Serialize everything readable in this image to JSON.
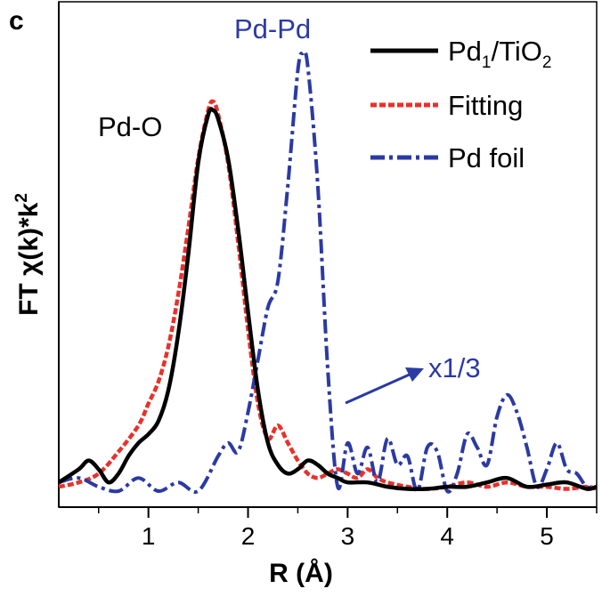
{
  "panel_label": "c",
  "chart_data": {
    "type": "line",
    "xlabel": "R (Å)",
    "ylabel": "FT χ(k)*k²",
    "ylabel_parts": {
      "prefix": "FT χ(k)*k",
      "sup": "2"
    },
    "xlim": [
      0.1,
      5.5
    ],
    "ylim": [
      0,
      1
    ],
    "y_ticks_labeled": false,
    "x_ticks": [
      1,
      2,
      3,
      4,
      5
    ],
    "x_tick_labels": [
      "1",
      "2",
      "3",
      "4",
      "5"
    ],
    "legend_position": "top-right",
    "series": [
      {
        "name": "Pd1/TiO2",
        "legend_parts": {
          "a": "Pd",
          "sub1": "1",
          "b": "/TiO",
          "sub2": "2"
        },
        "color": "#000000",
        "style": "solid",
        "x": [
          0.1,
          0.3,
          0.4,
          0.5,
          0.6,
          0.7,
          0.8,
          0.9,
          1.0,
          1.1,
          1.2,
          1.3,
          1.4,
          1.5,
          1.6,
          1.65,
          1.7,
          1.8,
          1.9,
          2.0,
          2.1,
          2.2,
          2.3,
          2.4,
          2.5,
          2.6,
          2.7,
          2.8,
          2.9,
          3.0,
          3.2,
          3.4,
          3.6,
          3.8,
          4.0,
          4.2,
          4.4,
          4.6,
          4.8,
          5.0,
          5.2,
          5.4,
          5.5
        ],
        "y": [
          0.02,
          0.05,
          0.07,
          0.05,
          0.02,
          0.04,
          0.08,
          0.11,
          0.13,
          0.16,
          0.23,
          0.36,
          0.54,
          0.75,
          0.86,
          0.87,
          0.85,
          0.76,
          0.6,
          0.41,
          0.23,
          0.11,
          0.06,
          0.04,
          0.05,
          0.07,
          0.06,
          0.04,
          0.03,
          0.02,
          0.02,
          0.01,
          0.005,
          0.005,
          0.01,
          0.01,
          0.02,
          0.03,
          0.01,
          0.015,
          0.02,
          0.005,
          0.01
        ]
      },
      {
        "name": "Fitting",
        "color": "#e8312a",
        "style": "dashed",
        "x": [
          0.1,
          0.3,
          0.5,
          0.7,
          0.9,
          1.0,
          1.1,
          1.2,
          1.3,
          1.4,
          1.5,
          1.6,
          1.65,
          1.7,
          1.8,
          1.9,
          2.0,
          2.1,
          2.2,
          2.3,
          2.4,
          2.5,
          2.6,
          2.7,
          2.8,
          2.9,
          3.0,
          3.1,
          3.2,
          3.3,
          3.4,
          3.6,
          3.8,
          4.0,
          4.2,
          4.4,
          4.6,
          4.8,
          5.0,
          5.2,
          5.4,
          5.5
        ],
        "y": [
          0.01,
          0.02,
          0.04,
          0.09,
          0.15,
          0.2,
          0.25,
          0.33,
          0.45,
          0.6,
          0.76,
          0.87,
          0.89,
          0.86,
          0.75,
          0.57,
          0.37,
          0.2,
          0.12,
          0.15,
          0.11,
          0.07,
          0.04,
          0.03,
          0.04,
          0.05,
          0.04,
          0.03,
          0.05,
          0.03,
          0.02,
          0.01,
          0.005,
          0.01,
          0.02,
          0.01,
          0.02,
          0.01,
          0.01,
          0.005,
          0.01,
          0.005
        ]
      },
      {
        "name": "Pd foil",
        "color": "#2b3aa3",
        "style": "dashdot",
        "x": [
          0.1,
          0.3,
          0.5,
          0.7,
          0.9,
          1.1,
          1.3,
          1.5,
          1.7,
          1.8,
          1.9,
          2.0,
          2.1,
          2.2,
          2.3,
          2.4,
          2.5,
          2.55,
          2.6,
          2.7,
          2.8,
          2.9,
          3.0,
          3.1,
          3.2,
          3.3,
          3.4,
          3.5,
          3.6,
          3.7,
          3.8,
          3.9,
          4.0,
          4.1,
          4.2,
          4.3,
          4.4,
          4.5,
          4.6,
          4.7,
          4.8,
          4.9,
          5.0,
          5.1,
          5.2,
          5.3,
          5.4,
          5.5
        ],
        "y": [
          0.02,
          0.03,
          0.01,
          0.0,
          0.03,
          0.0,
          0.02,
          0.0,
          0.08,
          0.11,
          0.09,
          0.18,
          0.3,
          0.42,
          0.48,
          0.7,
          0.96,
          1.0,
          0.97,
          0.7,
          0.28,
          0.01,
          0.11,
          0.04,
          0.1,
          0.02,
          0.12,
          0.06,
          0.08,
          0.0,
          0.1,
          0.09,
          0.0,
          0.04,
          0.13,
          0.1,
          0.06,
          0.17,
          0.22,
          0.18,
          0.1,
          0.01,
          0.05,
          0.11,
          0.05,
          0.04,
          0.01,
          0.01
        ]
      }
    ],
    "annotations": [
      {
        "text": "Pd-O",
        "color": "#000000"
      },
      {
        "text": "Pd-Pd",
        "color": "#2b3aa3"
      },
      {
        "text": "x1/3",
        "color": "#2b3aa3"
      }
    ]
  }
}
